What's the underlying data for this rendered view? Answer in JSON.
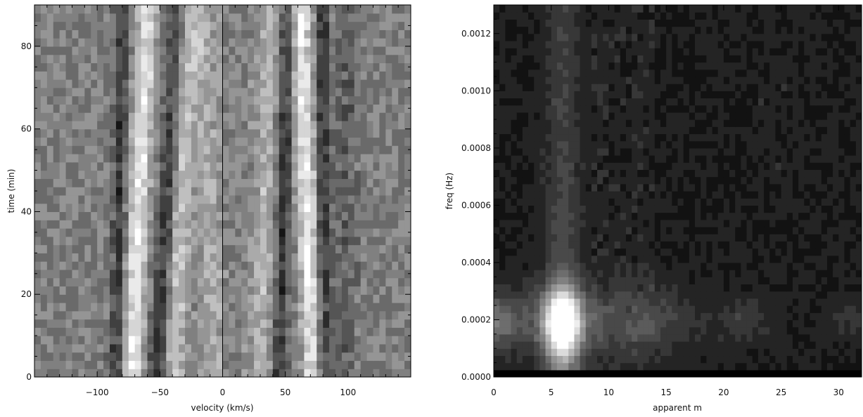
{
  "chart_data": [
    {
      "type": "heatmap",
      "colormap": "grayscale",
      "xlabel": "velocity (km/s)",
      "ylabel": "time (min)",
      "xlim": [
        -150,
        150
      ],
      "ylim": [
        0,
        90
      ],
      "xticks": [
        -100,
        -50,
        0,
        50,
        100
      ],
      "xtick_labels": [
        "−100",
        "−50",
        "0",
        "50",
        "100"
      ],
      "yticks": [
        0,
        20,
        40,
        60,
        80
      ],
      "ytick_labels": [
        "0",
        "20",
        "40",
        "60",
        "80"
      ],
      "reference_line_x": 0,
      "grid": false,
      "bands": [
        {
          "x0": -72,
          "x1": -60,
          "value": 0.95,
          "width": 8
        },
        {
          "x0": -52,
          "x1": -35,
          "value": 0.12,
          "width": 7
        },
        {
          "x0": -40,
          "x1": -28,
          "value": 0.82,
          "width": 9
        },
        {
          "x0": -85,
          "x1": -80,
          "value": 0.18,
          "width": 5
        },
        {
          "x0": 45,
          "x1": 52,
          "value": 0.15,
          "width": 6
        },
        {
          "x0": 72,
          "x1": 62,
          "value": 0.97,
          "width": 8
        },
        {
          "x0": 80,
          "x1": 80,
          "value": 0.15,
          "width": 5
        },
        {
          "x0": 30,
          "x1": 38,
          "value": 0.72,
          "width": 10
        },
        {
          "x0": -8,
          "x1": -15,
          "value": 0.7,
          "width": 10
        },
        {
          "x0": 95,
          "x1": 100,
          "value": 0.35,
          "width": 10
        }
      ]
    },
    {
      "type": "heatmap",
      "colormap": "grayscale",
      "xlabel": "apparent m",
      "ylabel": "freq (Hz)",
      "xlim": [
        0,
        32
      ],
      "ylim": [
        0,
        0.0013
      ],
      "xticks": [
        0,
        5,
        10,
        15,
        20,
        25,
        30
      ],
      "xtick_labels": [
        "0",
        "5",
        "10",
        "15",
        "20",
        "25",
        "30"
      ],
      "yticks": [
        0,
        0.0002,
        0.0004,
        0.0006,
        0.0008,
        0.001,
        0.0012
      ],
      "ytick_labels": [
        "0.0000",
        "0.0002",
        "0.0004",
        "0.0006",
        "0.0008",
        "0.0010",
        "0.0012"
      ],
      "grid": false,
      "peak": {
        "m": 6,
        "freq": 0.00019,
        "value": 1.0
      },
      "secondary_peaks": [
        {
          "m": 0,
          "freq": 0.0002,
          "value": 0.45
        },
        {
          "m": 22,
          "freq": 0.0002,
          "value": 0.28
        },
        {
          "m": 31,
          "freq": 0.0002,
          "value": 0.25
        }
      ]
    }
  ]
}
